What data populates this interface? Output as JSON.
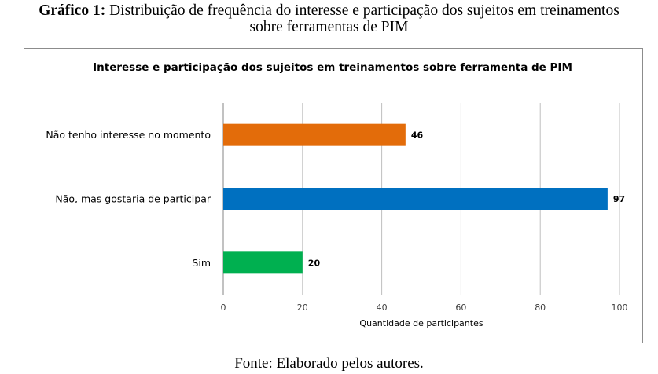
{
  "caption": {
    "label": "Gráfico 1:",
    "line1": " Distribuição de frequência do interesse e participação dos sujeitos em treinamentos",
    "line2": "sobre ferramentas de PIM"
  },
  "source": "Fonte: Elaborado pelos autores.",
  "chart_data": {
    "type": "bar",
    "orientation": "horizontal",
    "title": "Interesse e participação dos sujeitos em treinamentos sobre ferramenta de PIM",
    "xlabel": "Quantidade de participantes",
    "ylabel": "",
    "xlim": [
      0,
      100
    ],
    "ticks": [
      0,
      20,
      40,
      60,
      80,
      100
    ],
    "grid": true,
    "legend": "none",
    "categories": [
      "Não tenho interesse no momento",
      "Não, mas gostaria de participar",
      "Sim"
    ],
    "values": [
      46,
      97,
      20
    ],
    "colors": [
      "#e36c0a",
      "#0070c0",
      "#00b050"
    ]
  }
}
